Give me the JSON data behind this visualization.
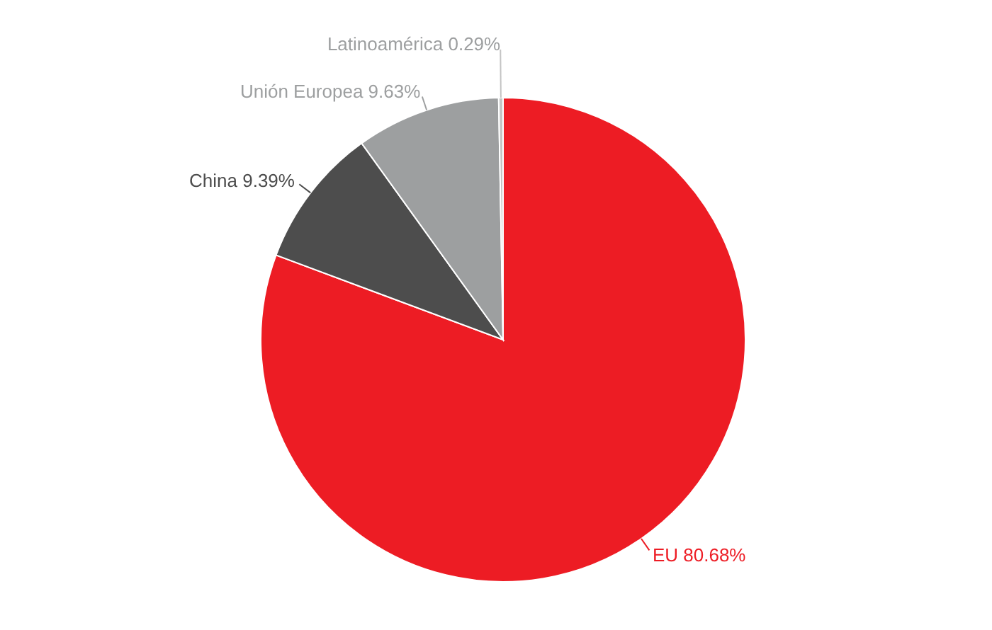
{
  "chart_data": {
    "type": "pie",
    "categories": [
      "EU",
      "China",
      "Unión Europea",
      "Latinoamérica"
    ],
    "values": [
      80.68,
      9.39,
      9.63,
      0.29
    ],
    "value_labels": [
      "80.68%",
      "9.39%",
      "9.63%",
      "0.29%"
    ],
    "colors": [
      "#ed1c24",
      "#4d4d4d",
      "#9d9fa0",
      "#c4c4c4"
    ]
  }
}
